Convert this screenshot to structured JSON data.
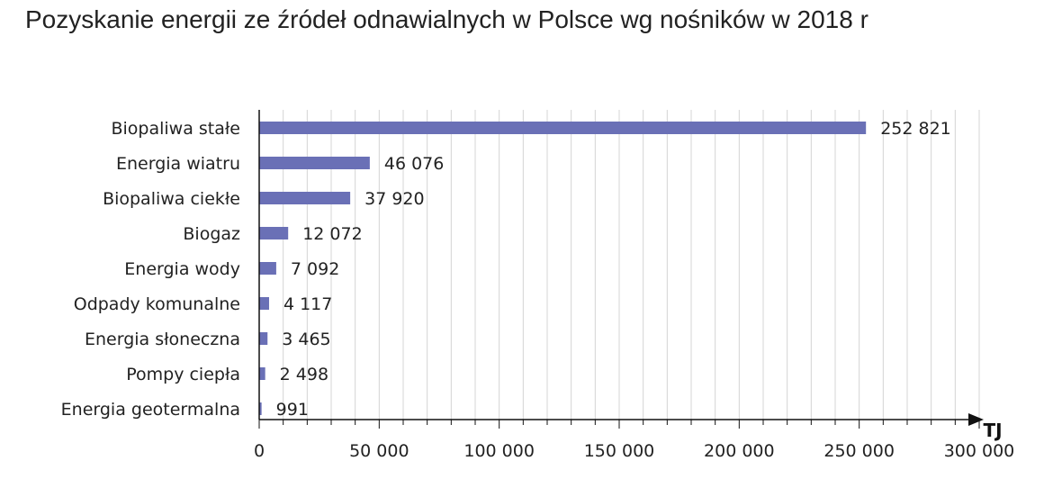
{
  "title": "Pozyskanie energii ze źródeł odnawialnych w Polsce wg nośników w 2018 r",
  "chart_data": {
    "type": "bar",
    "orientation": "horizontal",
    "title": "Pozyskanie energii ze źródeł odnawialnych w Polsce wg nośników w 2018 r",
    "categories": [
      "Biopaliwa stałe",
      "Energia wiatru",
      "Biopaliwa ciekłe",
      "Biogaz",
      "Energia wody",
      "Odpady komunalne",
      "Energia słoneczna",
      "Pompy ciepła",
      "Energia geotermalna"
    ],
    "values": [
      252821,
      46076,
      37920,
      12072,
      7092,
      4117,
      3465,
      2498,
      991
    ],
    "value_labels": [
      "252 821",
      "46 076",
      "37 920",
      "12 072",
      "7 092",
      "4 117",
      "3 465",
      "2 498",
      "991"
    ],
    "xlabel": "TJ",
    "ylabel": "",
    "xlim": [
      0,
      300000
    ],
    "ticks": [
      0,
      50000,
      100000,
      150000,
      200000,
      250000,
      300000
    ],
    "tick_labels": [
      "0",
      "50 000",
      "100 000",
      "150 000",
      "200 000",
      "250 000",
      "300 000"
    ],
    "grid": "vertical",
    "colors": {
      "bar": "#6a70b6",
      "grid": "#d4d4d4",
      "axis": "#111111",
      "text": "#222222"
    }
  }
}
